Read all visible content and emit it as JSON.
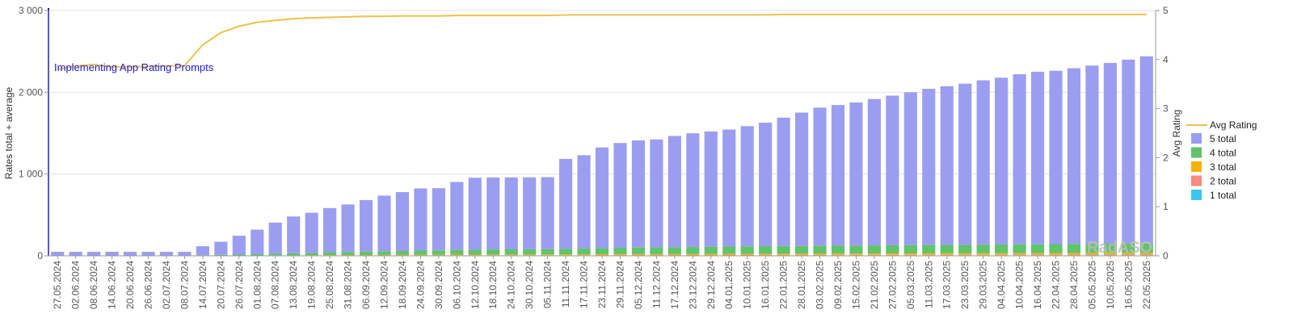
{
  "chart_data": {
    "type": "bar",
    "stacked": true,
    "x": [
      "27.05.2024",
      "02.06.2024",
      "08.06.2024",
      "14.06.2024",
      "20.06.2024",
      "26.06.2024",
      "02.07.2024",
      "08.07.2024",
      "14.07.2024",
      "20.07.2024",
      "26.07.2024",
      "01.08.2024",
      "07.08.2024",
      "13.08.2024",
      "19.08.2024",
      "25.08.2024",
      "31.08.2024",
      "06.09.2024",
      "12.09.2024",
      "18.09.2024",
      "24.09.2024",
      "30.09.2024",
      "06.10.2024",
      "12.10.2024",
      "18.10.2024",
      "24.10.2024",
      "30.10.2024",
      "05.11.2024",
      "11.11.2024",
      "17.11.2024",
      "23.11.2024",
      "29.11.2024",
      "05.12.2024",
      "11.12.2024",
      "17.12.2024",
      "23.12.2024",
      "29.12.2024",
      "04.01.2025",
      "10.01.2025",
      "16.01.2025",
      "22.01.2025",
      "28.01.2025",
      "03.02.2025",
      "09.02.2025",
      "15.02.2025",
      "21.02.2025",
      "27.02.2025",
      "05.03.2025",
      "11.03.2025",
      "17.03.2025",
      "23.03.2025",
      "29.03.2025",
      "04.04.2025",
      "10.04.2025",
      "16.04.2025",
      "22.04.2025",
      "28.04.2025",
      "05.05.2025",
      "10.05.2025",
      "16.05.2025",
      "22.05.2025"
    ],
    "ylabel_left": "Rates total + average",
    "ylabel_right": "Avg Rating",
    "ylim_left": [
      0,
      3000
    ],
    "ylim_right": [
      0,
      5
    ],
    "yticks_left": [
      "0",
      "1 000",
      "2 000",
      "3 000"
    ],
    "yticks_right": [
      "0",
      "1",
      "2",
      "3",
      "4",
      "5"
    ],
    "series": [
      {
        "name": "5 total",
        "color": "#9b9ef0",
        "axis": "left",
        "values": [
          45,
          45,
          45,
          45,
          45,
          45,
          45,
          45,
          110,
          160,
          230,
          300,
          380,
          450,
          490,
          540,
          580,
          630,
          680,
          720,
          760,
          760,
          830,
          880,
          880,
          880,
          880,
          880,
          1100,
          1140,
          1230,
          1280,
          1310,
          1320,
          1360,
          1390,
          1410,
          1430,
          1470,
          1510,
          1570,
          1630,
          1690,
          1720,
          1750,
          1790,
          1830,
          1870,
          1910,
          1940,
          1970,
          2010,
          2040,
          2080,
          2110,
          2120,
          2150,
          2180,
          2210,
          2250,
          2290
        ]
      },
      {
        "name": "4 total",
        "color": "#5fc46a",
        "axis": "left",
        "values": [
          3,
          3,
          3,
          3,
          3,
          3,
          3,
          3,
          5,
          8,
          10,
          15,
          20,
          25,
          30,
          35,
          38,
          42,
          45,
          48,
          52,
          55,
          58,
          60,
          62,
          63,
          64,
          65,
          68,
          72,
          75,
          78,
          80,
          82,
          84,
          86,
          88,
          90,
          92,
          93,
          94,
          95,
          96,
          97,
          98,
          99,
          100,
          101,
          102,
          103,
          104,
          105,
          106,
          107,
          108,
          109,
          110,
          111,
          112,
          113,
          114
        ]
      },
      {
        "name": "3 total",
        "color": "#f4b30c",
        "axis": "left",
        "values": [
          0,
          0,
          0,
          0,
          0,
          0,
          0,
          0,
          1,
          1,
          2,
          2,
          3,
          3,
          4,
          4,
          5,
          5,
          6,
          6,
          7,
          7,
          8,
          8,
          9,
          9,
          9,
          10,
          10,
          11,
          11,
          12,
          12,
          12,
          13,
          13,
          13,
          14,
          14,
          14,
          15,
          15,
          15,
          16,
          16,
          16,
          17,
          17,
          17,
          18,
          18,
          18,
          19,
          19,
          19,
          20,
          20,
          20,
          21,
          21,
          21
        ]
      },
      {
        "name": "2 total",
        "color": "#f88a7e",
        "axis": "left",
        "values": [
          0,
          0,
          0,
          0,
          0,
          0,
          0,
          0,
          0,
          1,
          1,
          1,
          1,
          1,
          1,
          2,
          2,
          2,
          2,
          2,
          2,
          2,
          3,
          3,
          3,
          3,
          3,
          3,
          3,
          3,
          4,
          4,
          4,
          4,
          4,
          4,
          4,
          5,
          5,
          5,
          5,
          5,
          5,
          5,
          5,
          6,
          6,
          6,
          6,
          6,
          6,
          6,
          6,
          7,
          7,
          7,
          7,
          7,
          7,
          7,
          7
        ]
      },
      {
        "name": "1 total",
        "color": "#3cc4f5",
        "axis": "left",
        "values": [
          1,
          1,
          1,
          1,
          1,
          1,
          1,
          1,
          1,
          2,
          2,
          2,
          2,
          2,
          2,
          3,
          3,
          3,
          3,
          3,
          3,
          3,
          4,
          4,
          4,
          4,
          4,
          4,
          4,
          4,
          5,
          5,
          5,
          5,
          5,
          5,
          5,
          5,
          5,
          6,
          6,
          6,
          6,
          6,
          6,
          6,
          6,
          6,
          7,
          7,
          7,
          7,
          7,
          7,
          7,
          7,
          7,
          8,
          8,
          8,
          8
        ]
      },
      {
        "name": "Avg Rating",
        "type": "line",
        "color": "#f0c24a",
        "axis": "right",
        "values": [
          3.8,
          3.87,
          3.9,
          3.85,
          3.85,
          3.86,
          3.87,
          3.88,
          4.3,
          4.55,
          4.68,
          4.76,
          4.8,
          4.83,
          4.85,
          4.86,
          4.87,
          4.88,
          4.88,
          4.89,
          4.89,
          4.89,
          4.9,
          4.9,
          4.9,
          4.9,
          4.9,
          4.9,
          4.91,
          4.91,
          4.91,
          4.91,
          4.91,
          4.91,
          4.91,
          4.91,
          4.91,
          4.91,
          4.91,
          4.91,
          4.92,
          4.92,
          4.92,
          4.92,
          4.92,
          4.92,
          4.92,
          4.92,
          4.92,
          4.92,
          4.92,
          4.92,
          4.92,
          4.92,
          4.92,
          4.92,
          4.92,
          4.92,
          4.92,
          4.92,
          4.92
        ]
      }
    ],
    "annotation": {
      "label": "Implementing App Rating Prompts",
      "x": "11.07.2024",
      "color": "#1a1ad6"
    },
    "legend": {
      "position": "right",
      "items": [
        "Avg Rating",
        "5 total",
        "4 total",
        "3 total",
        "2 total",
        "1 total"
      ]
    },
    "grid": true,
    "watermark": "RadASO"
  }
}
